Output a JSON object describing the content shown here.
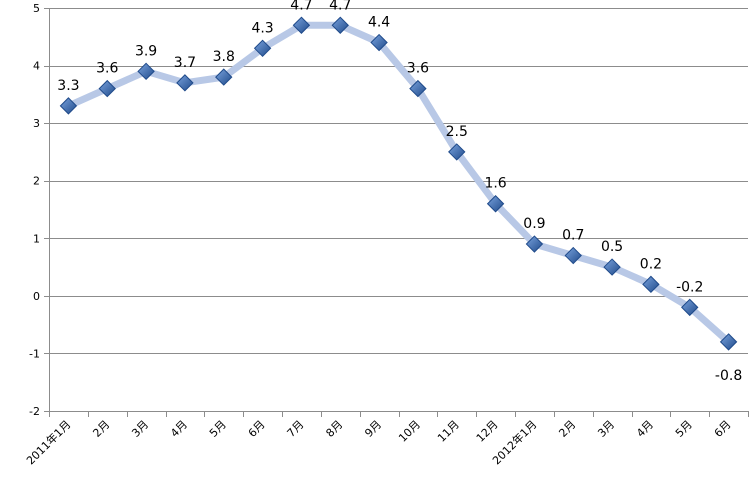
{
  "chart_data": {
    "type": "line",
    "title": "",
    "xlabel": "",
    "ylabel": "",
    "categories": [
      "2011年1月",
      "2月",
      "3月",
      "4月",
      "5月",
      "6月",
      "7月",
      "8月",
      "9月",
      "10月",
      "11月",
      "12月",
      "2012年1月",
      "2月",
      "3月",
      "4月",
      "5月",
      "6月"
    ],
    "series": [
      {
        "values": [
          3.3,
          3.6,
          3.9,
          3.7,
          3.8,
          4.3,
          4.7,
          4.7,
          4.4,
          3.6,
          2.5,
          1.6,
          0.9,
          0.7,
          0.5,
          0.2,
          -0.2,
          -0.8
        ]
      }
    ],
    "data_labels": [
      "3.3",
      "3.6",
      "3.9",
      "3.7",
      "3.8",
      "4.3",
      "4.7",
      "4.7",
      "4.4",
      "3.6",
      "2.5",
      "1.6",
      "0.9",
      "0.7",
      "0.5",
      "0.2",
      "-0.2",
      "-0.8"
    ],
    "ylim": [
      -2,
      5
    ],
    "yticks": [
      -2,
      -1,
      0,
      1,
      2,
      3,
      4,
      5
    ],
    "grid": true,
    "legend": "none",
    "colors": {
      "line": "#b8c8e6",
      "marker": "#3d6eb5",
      "marker_light": "#7aa3de",
      "marker_dark": "#1f4a8a",
      "grid": "#8c8c8c"
    }
  }
}
